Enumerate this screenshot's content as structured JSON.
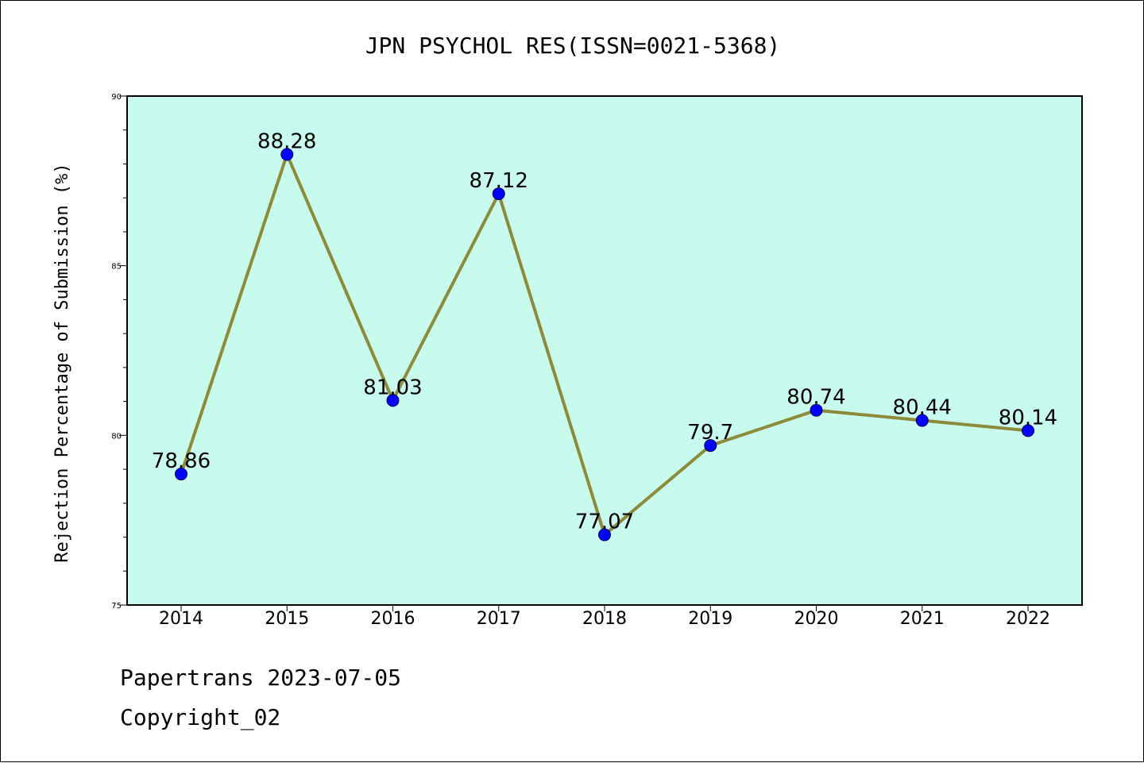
{
  "chart_data": {
    "type": "line",
    "title": "JPN PSYCHOL RES(ISSN=0021-5368)",
    "xlabel": "",
    "ylabel": "Rejection Percentage of Submission (%)",
    "categories": [
      "2014",
      "2015",
      "2016",
      "2017",
      "2018",
      "2019",
      "2020",
      "2021",
      "2022"
    ],
    "values": [
      78.86,
      88.28,
      81.03,
      87.12,
      77.07,
      79.7,
      80.74,
      80.44,
      80.14
    ],
    "data_labels": [
      "78.86",
      "88.28",
      "81.03",
      "87.12",
      "77.07",
      "79.7",
      "80.74",
      "80.44",
      "80.14"
    ],
    "ylim": [
      75,
      90
    ],
    "yticks": [
      "75",
      "80",
      "85",
      "90"
    ],
    "grid": false,
    "colors": {
      "plot_background": "#c8fbee",
      "line": "#8b8b3a",
      "marker": "#0000ff"
    }
  },
  "footer": {
    "line1": "Papertrans 2023-07-05",
    "line2": "Copyright_02"
  }
}
